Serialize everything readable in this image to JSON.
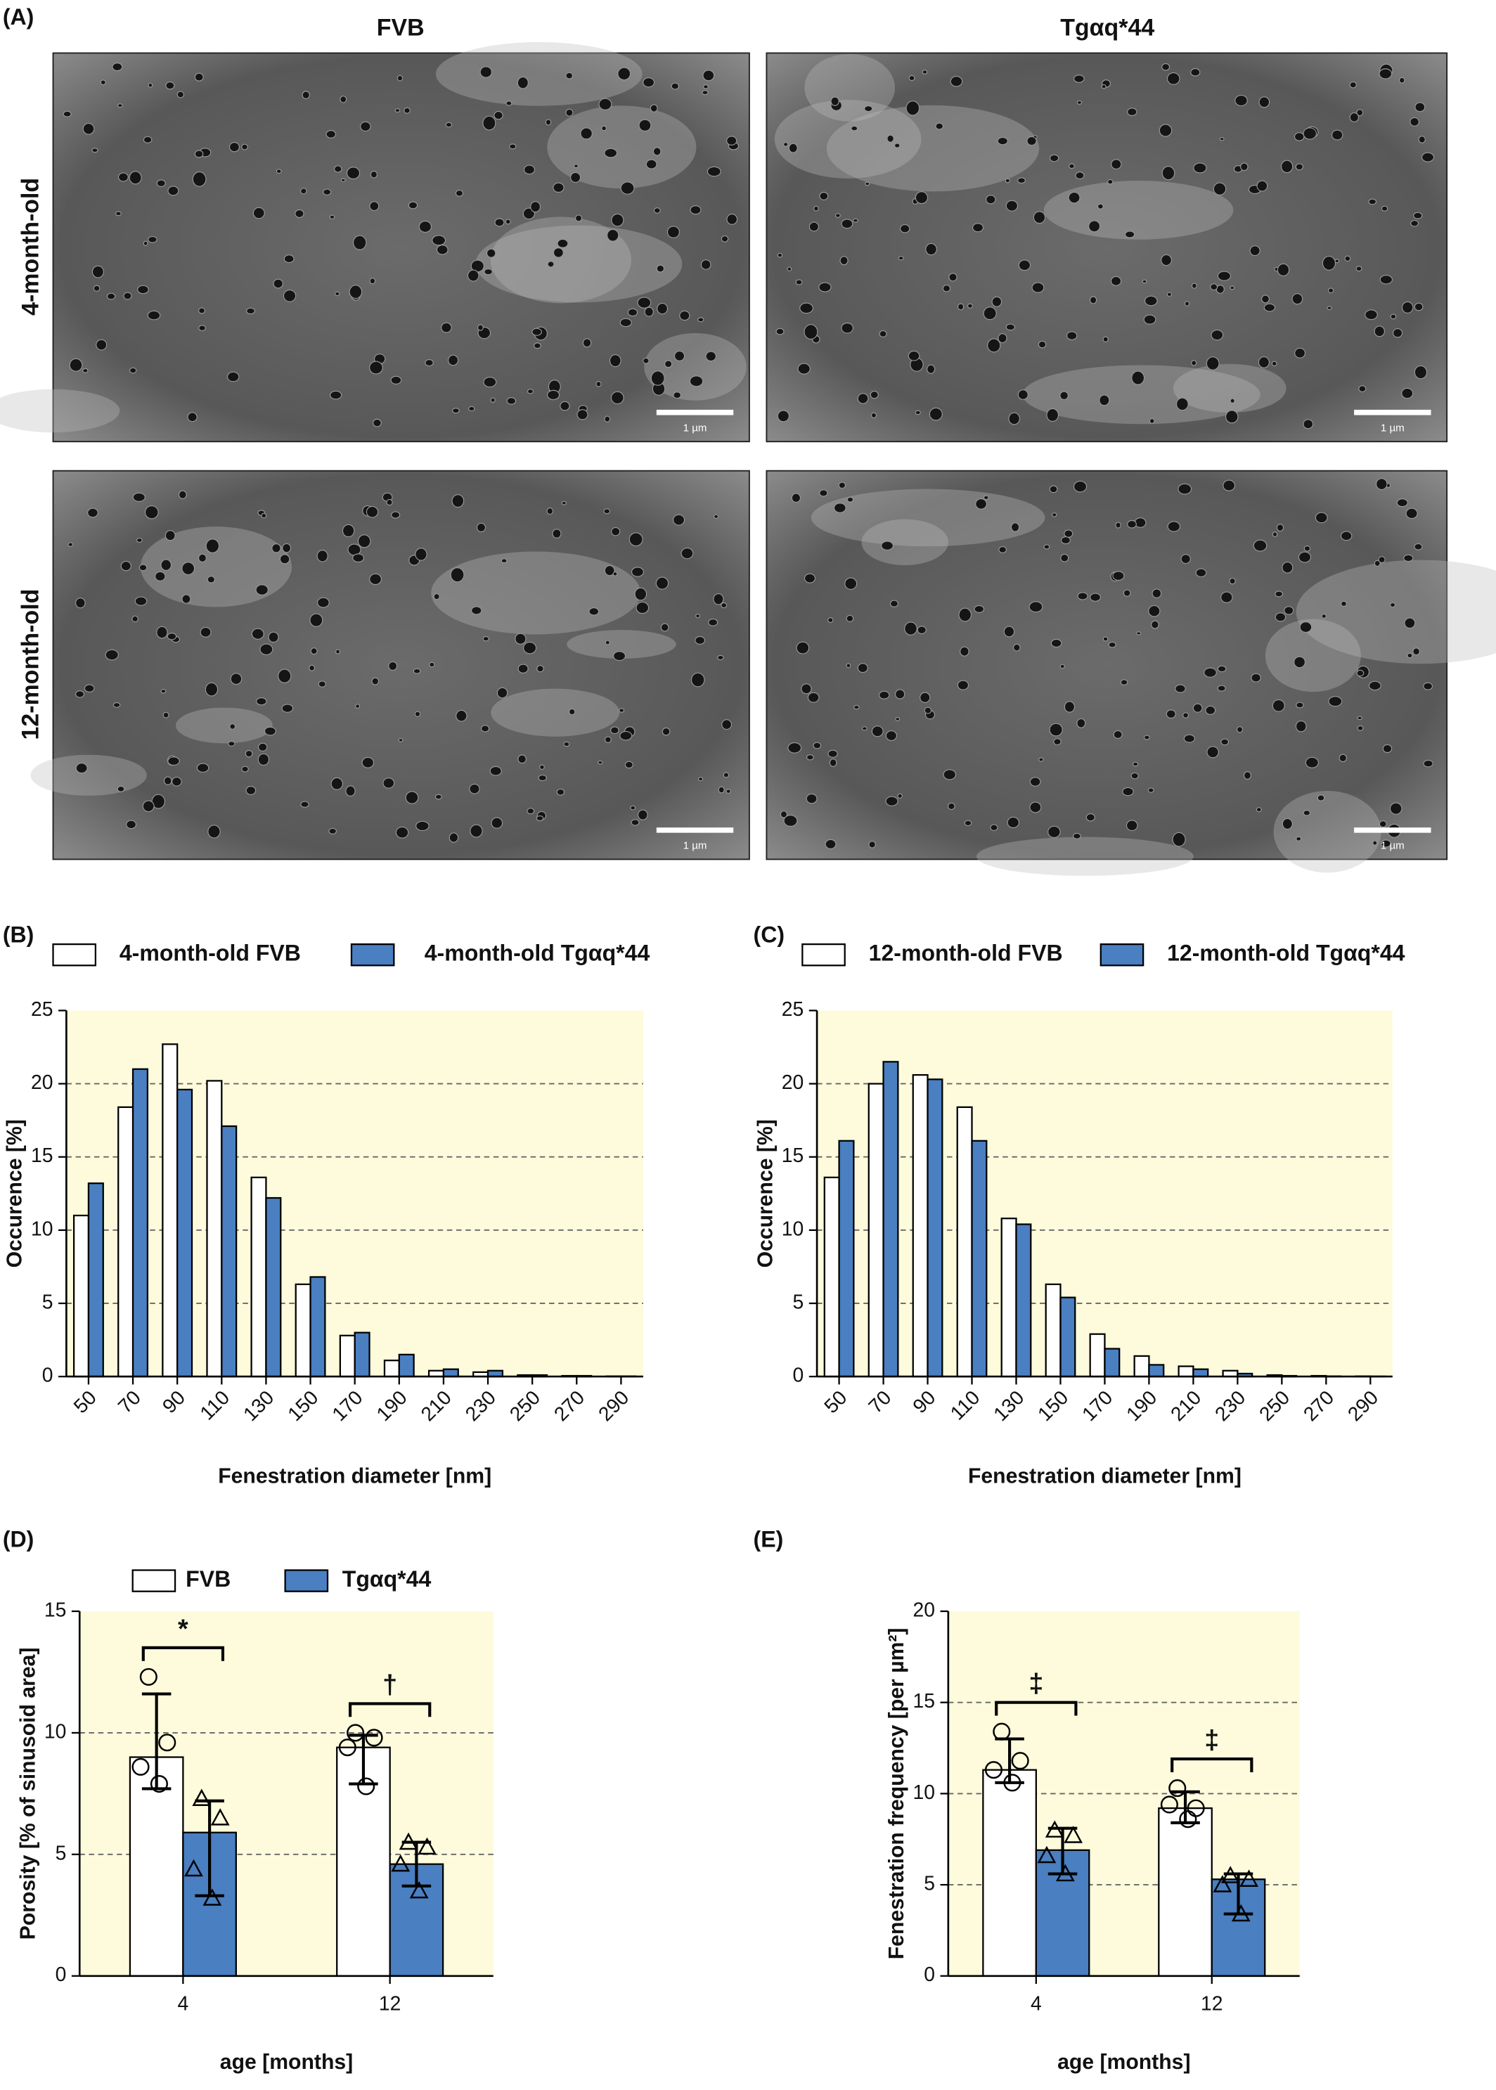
{
  "micrographs": {
    "label": "(A)",
    "columns": [
      "FVB",
      "Tgαq*44"
    ],
    "rows": [
      "4-month-old",
      "12-month-old"
    ],
    "scale_bar": "1 µm"
  },
  "chart_data": [
    {
      "type": "bar",
      "panel_label": "(B)",
      "ylabel": "Occurence [%]",
      "xlabel": "Fenestration diameter [nm]",
      "categories": [
        "50",
        "70",
        "90",
        "110",
        "130",
        "150",
        "170",
        "190",
        "210",
        "230",
        "250",
        "270",
        "290"
      ],
      "series": [
        {
          "name": "4-month-old FVB",
          "color": "#ffffff",
          "values": [
            11.0,
            18.4,
            22.7,
            20.2,
            13.6,
            6.3,
            2.8,
            1.1,
            0.4,
            0.3,
            0.1,
            0.05,
            0.02
          ]
        },
        {
          "name": "4-month-old Tgαq*44",
          "color": "#4a7fc1",
          "values": [
            13.2,
            21.0,
            19.6,
            17.1,
            12.2,
            6.8,
            3.0,
            1.5,
            0.5,
            0.4,
            0.1,
            0.05,
            0.02
          ]
        }
      ],
      "ylim": [
        0,
        25
      ],
      "yticks": [
        0,
        5,
        10,
        15,
        20,
        25
      ],
      "grid": true,
      "background": "#fdfbdc"
    },
    {
      "type": "bar",
      "panel_label": "(C)",
      "ylabel": "Occurence [%]",
      "xlabel": "Fenestration diameter [nm]",
      "categories": [
        "50",
        "70",
        "90",
        "110",
        "130",
        "150",
        "170",
        "190",
        "210",
        "230",
        "250",
        "270",
        "290"
      ],
      "series": [
        {
          "name": "12-month-old FVB",
          "color": "#ffffff",
          "values": [
            13.6,
            20.0,
            20.6,
            18.4,
            10.8,
            6.3,
            2.9,
            1.4,
            0.7,
            0.4,
            0.1,
            0.05,
            0.02
          ]
        },
        {
          "name": "12-month-old Tgαq*44",
          "color": "#4a7fc1",
          "values": [
            16.1,
            21.5,
            20.3,
            16.1,
            10.4,
            5.4,
            1.9,
            0.8,
            0.5,
            0.2,
            0.05,
            0.02,
            0.01
          ]
        }
      ],
      "ylim": [
        0,
        25
      ],
      "yticks": [
        0,
        5,
        10,
        15,
        20,
        25
      ],
      "grid": true,
      "background": "#fdfbdc"
    },
    {
      "type": "bar",
      "panel_label": "(D)",
      "ylabel": "Porosity [% of sinusoid area]",
      "xlabel": "age [months]",
      "categories": [
        "4",
        "12"
      ],
      "legend": true,
      "series": [
        {
          "name": "FVB",
          "color": "#ffffff",
          "values": [
            9.0,
            9.4
          ],
          "lower": [
            7.7,
            7.9
          ],
          "upper": [
            11.6,
            9.9
          ],
          "points": [
            [
              12.3,
              9.6,
              8.6,
              7.9
            ],
            [
              10.0,
              9.8,
              9.4,
              7.8
            ]
          ],
          "marker": "circle"
        },
        {
          "name": "Tgαq*44",
          "color": "#4a7fc1",
          "values": [
            5.9,
            4.6
          ],
          "lower": [
            3.3,
            3.7
          ],
          "upper": [
            7.2,
            5.5
          ],
          "points": [
            [
              7.3,
              6.5,
              4.4,
              3.2
            ],
            [
              5.5,
              5.3,
              4.6,
              3.5
            ]
          ],
          "marker": "triangle"
        }
      ],
      "annotations": [
        "*",
        "†"
      ],
      "ylim": [
        0,
        15
      ],
      "yticks": [
        0,
        5,
        10,
        15
      ],
      "grid": true,
      "background": "#fdfbdc"
    },
    {
      "type": "bar",
      "panel_label": "(E)",
      "ylabel": "Fenestration frequency [per µm²]",
      "xlabel": "age [months]",
      "categories": [
        "4",
        "12"
      ],
      "legend": false,
      "series": [
        {
          "name": "FVB",
          "color": "#ffffff",
          "values": [
            11.3,
            9.2
          ],
          "lower": [
            10.6,
            8.4
          ],
          "upper": [
            13.0,
            10.1
          ],
          "points": [
            [
              13.4,
              11.8,
              11.3,
              10.6
            ],
            [
              10.3,
              9.2,
              9.4,
              8.6
            ]
          ],
          "marker": "circle"
        },
        {
          "name": "Tgαq*44",
          "color": "#4a7fc1",
          "values": [
            6.9,
            5.3
          ],
          "lower": [
            5.6,
            3.4
          ],
          "upper": [
            8.1,
            5.6
          ],
          "points": [
            [
              8.0,
              7.7,
              6.6,
              5.6
            ],
            [
              5.5,
              5.3,
              5.0,
              3.4
            ]
          ],
          "marker": "triangle"
        }
      ],
      "annotations": [
        "‡",
        "‡"
      ],
      "ylim": [
        0,
        20
      ],
      "yticks": [
        0,
        5,
        10,
        15,
        20
      ],
      "grid": true,
      "background": "#fdfbdc"
    }
  ]
}
